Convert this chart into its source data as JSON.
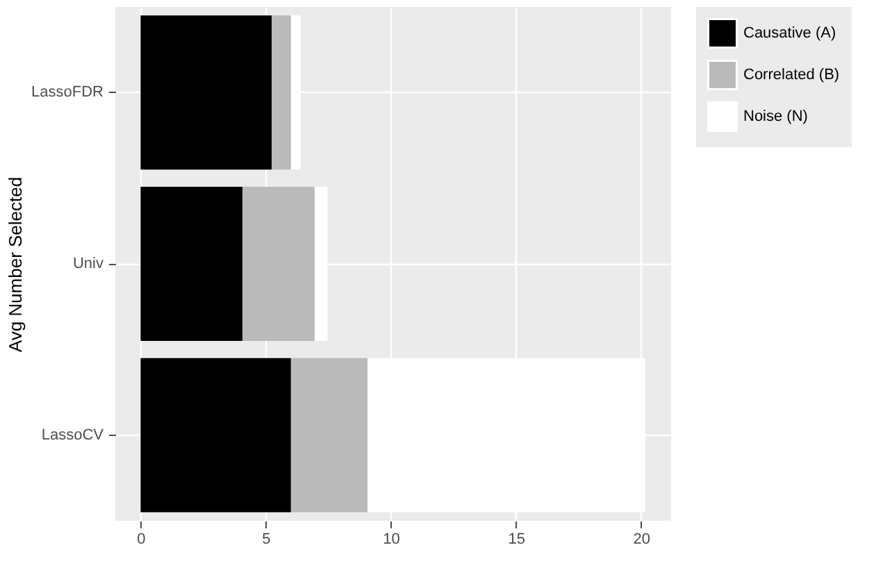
{
  "chart_data": {
    "type": "bar",
    "orientation": "horizontal",
    "stacked": true,
    "ylabel": "Avg Number Selected",
    "categories": [
      "LassoFDR",
      "Univ",
      "LassoCV"
    ],
    "series": [
      {
        "name": "Causative (A)",
        "color": "#000000",
        "values": [
          5.24,
          4.07,
          6.01
        ]
      },
      {
        "name": "Correlated (B)",
        "color": "#bababa",
        "values": [
          0.77,
          2.89,
          3.06
        ]
      },
      {
        "name": "Noise (N)",
        "color": "#ffffff",
        "values": [
          0.39,
          0.51,
          11.1
        ]
      }
    ],
    "xlim": [
      -1.01,
      21.2
    ],
    "xticks": [
      0,
      5,
      10,
      15,
      20
    ],
    "grid": true,
    "legend": "right"
  }
}
